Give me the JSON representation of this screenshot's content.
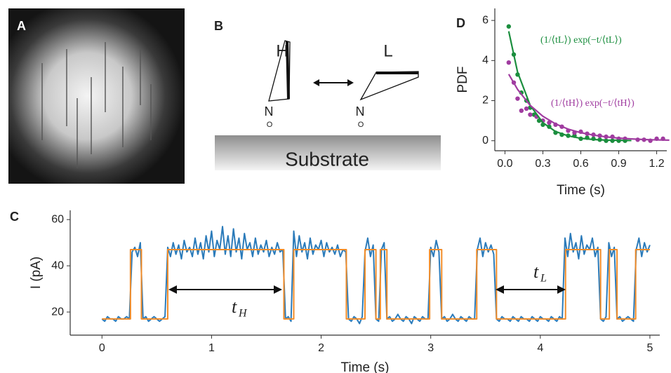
{
  "panels": {
    "A": {
      "label": "A"
    },
    "B": {
      "label": "B",
      "molecules": [
        {
          "state": "H",
          "n": "N",
          "o": "O"
        },
        {
          "state": "L",
          "n": "N",
          "o": "O"
        }
      ],
      "substrate": "Substrate"
    }
  },
  "chart_data": [
    {
      "type": "line",
      "panel": "C",
      "xlabel": "Time (s)",
      "ylabel": "I (pA)",
      "xlim": [
        -0.29,
        5.09
      ],
      "ylim": [
        10,
        64
      ],
      "xticks": [
        0,
        1,
        2,
        3,
        4,
        5
      ],
      "yticks": [
        20,
        40,
        60
      ],
      "annotations": [
        {
          "text": "t",
          "sub": "H"
        },
        {
          "text": "t",
          "sub": "L"
        }
      ],
      "series": [
        {
          "color": "#2b7bba",
          "x": [
            0,
            0.025,
            0.05,
            0.075,
            0.1,
            0.125,
            0.15,
            0.175,
            0.2,
            0.225,
            0.25,
            0.275,
            0.3,
            0.325,
            0.35,
            0.375,
            0.4,
            0.425,
            0.45,
            0.475,
            0.5,
            0.525,
            0.55,
            0.575,
            0.6,
            0.625,
            0.65,
            0.675,
            0.7,
            0.725,
            0.75,
            0.775,
            0.8,
            0.825,
            0.85,
            0.875,
            0.9,
            0.925,
            0.95,
            0.975,
            1,
            1.025,
            1.05,
            1.075,
            1.1,
            1.125,
            1.15,
            1.175,
            1.2,
            1.225,
            1.25,
            1.275,
            1.3,
            1.325,
            1.35,
            1.375,
            1.4,
            1.425,
            1.45,
            1.475,
            1.5,
            1.525,
            1.55,
            1.575,
            1.6,
            1.625,
            1.65,
            1.675,
            1.7,
            1.725,
            1.75,
            1.775,
            1.8,
            1.825,
            1.85,
            1.875,
            1.9,
            1.925,
            1.95,
            1.975,
            2,
            2.025,
            2.05,
            2.075,
            2.1,
            2.125,
            2.15,
            2.175,
            2.2,
            2.225,
            2.25,
            2.275,
            2.3,
            2.325,
            2.35,
            2.375,
            2.4,
            2.425,
            2.45,
            2.475,
            2.5,
            2.525,
            2.55,
            2.575,
            2.6,
            2.625,
            2.65,
            2.675,
            2.7,
            2.725,
            2.75,
            2.775,
            2.8,
            2.825,
            2.85,
            2.875,
            2.9,
            2.925,
            2.95,
            2.975,
            3,
            3.025,
            3.05,
            3.075,
            3.1,
            3.125,
            3.15,
            3.175,
            3.2,
            3.225,
            3.25,
            3.275,
            3.3,
            3.325,
            3.35,
            3.375,
            3.4,
            3.425,
            3.45,
            3.475,
            3.5,
            3.525,
            3.55,
            3.575,
            3.6,
            3.625,
            3.65,
            3.675,
            3.7,
            3.725,
            3.75,
            3.775,
            3.8,
            3.825,
            3.85,
            3.875,
            3.9,
            3.925,
            3.95,
            3.975,
            4,
            4.025,
            4.05,
            4.075,
            4.1,
            4.125,
            4.15,
            4.175,
            4.2,
            4.225,
            4.25,
            4.275,
            4.3,
            4.325,
            4.35,
            4.375,
            4.4,
            4.425,
            4.45,
            4.475,
            4.5,
            4.525,
            4.55,
            4.575,
            4.6,
            4.625,
            4.65,
            4.675,
            4.7,
            4.725,
            4.75,
            4.775,
            4.8,
            4.825,
            4.85,
            4.875,
            4.9,
            4.925,
            4.95,
            4.975,
            5
          ],
          "values": [
            17,
            16,
            18,
            17,
            17,
            16,
            18,
            17,
            17,
            18,
            17,
            46,
            48,
            44,
            50,
            17,
            18,
            16,
            17,
            18,
            17,
            16,
            17,
            18,
            48,
            44,
            50,
            45,
            49,
            43,
            51,
            46,
            48,
            44,
            52,
            45,
            50,
            43,
            53,
            46,
            55,
            44,
            51,
            47,
            57,
            45,
            53,
            44,
            56,
            46,
            52,
            43,
            54,
            47,
            50,
            44,
            52,
            45,
            49,
            46,
            51,
            44,
            48,
            45,
            50,
            46,
            47,
            17,
            18,
            16,
            55,
            44,
            53,
            46,
            50,
            43,
            52,
            45,
            49,
            47,
            51,
            44,
            50,
            46,
            48,
            45,
            49,
            44,
            47,
            46,
            17,
            16,
            18,
            17,
            15,
            18,
            46,
            52,
            44,
            49,
            17,
            16,
            47,
            50,
            17,
            18,
            16,
            17,
            19,
            17,
            16,
            18,
            17,
            15,
            18,
            17,
            16,
            18,
            17,
            17,
            48,
            44,
            51,
            46,
            17,
            18,
            16,
            17,
            19,
            17,
            16,
            18,
            17,
            16,
            18,
            17,
            17,
            47,
            52,
            44,
            50,
            46,
            49,
            45,
            17,
            16,
            18,
            17,
            17,
            16,
            18,
            17,
            16,
            18,
            17,
            17,
            16,
            18,
            17,
            16,
            18,
            17,
            17,
            16,
            18,
            17,
            16,
            18,
            17,
            52,
            44,
            54,
            46,
            50,
            43,
            53,
            45,
            49,
            47,
            52,
            44,
            48,
            17,
            16,
            18,
            50,
            44,
            48,
            17,
            18,
            16,
            17,
            18,
            17,
            16,
            47,
            52,
            44,
            50,
            46,
            49
          ]
        },
        {
          "color": "#f28c28",
          "x": [
            0,
            0.26,
            0.26,
            0.36,
            0.36,
            0.6,
            0.6,
            1.66,
            1.66,
            1.75,
            1.75,
            2.23,
            2.23,
            2.4,
            2.4,
            2.5,
            2.5,
            2.54,
            2.54,
            2.6,
            2.6,
            2.99,
            2.99,
            3.1,
            3.1,
            3.42,
            3.42,
            3.6,
            3.6,
            4.23,
            4.23,
            4.55,
            4.55,
            4.63,
            4.63,
            4.7,
            4.7,
            4.87,
            4.87,
            5.0
          ],
          "values": [
            17,
            17,
            47,
            47,
            17,
            17,
            47,
            47,
            17,
            17,
            47,
            47,
            17,
            17,
            47,
            47,
            17,
            17,
            47,
            47,
            17,
            17,
            47,
            47,
            17,
            17,
            47,
            47,
            17,
            17,
            47,
            47,
            17,
            17,
            47,
            47,
            17,
            17,
            47,
            47
          ]
        }
      ]
    },
    {
      "type": "scatter",
      "panel": "D",
      "xlabel": "Time (s)",
      "ylabel": "PDF",
      "xlim": [
        -0.08,
        1.28
      ],
      "ylim": [
        -0.5,
        6.6
      ],
      "xticks": [
        {
          "value": 0,
          "label": "0.0"
        },
        0.3,
        0.6,
        0.9,
        1.2
      ],
      "yticks": [
        0,
        2,
        4,
        6
      ],
      "annotations": [
        {
          "text": "(1/⟨tL⟩) exp(−t/⟨tL⟩)",
          "color": "#1b8e3e"
        },
        {
          "text": "(1/⟨tH⟩) exp(−t/⟨tH⟩)",
          "color": "#a03ca0"
        }
      ],
      "series": [
        {
          "color": "#1b8e3e",
          "style": "points",
          "x": [
            0.03,
            0.07,
            0.1,
            0.13,
            0.17,
            0.2,
            0.23,
            0.27,
            0.3,
            0.35,
            0.4,
            0.45,
            0.5,
            0.55,
            0.6,
            0.65,
            0.7,
            0.75,
            0.8,
            0.85,
            0.9,
            0.95
          ],
          "values": [
            5.7,
            4.3,
            3.3,
            2.4,
            2.0,
            1.65,
            1.3,
            1.0,
            0.8,
            0.7,
            0.4,
            0.3,
            0.25,
            0.25,
            0.1,
            0.15,
            0.1,
            0.05,
            0,
            0,
            0,
            0
          ]
        },
        {
          "color": "#a03ca0",
          "style": "points",
          "x": [
            0.03,
            0.07,
            0.1,
            0.13,
            0.17,
            0.2,
            0.25,
            0.3,
            0.35,
            0.4,
            0.45,
            0.5,
            0.55,
            0.6,
            0.65,
            0.7,
            0.75,
            0.8,
            0.85,
            0.9,
            0.95,
            1.05,
            1.1,
            1.15,
            1.2,
            1.25
          ],
          "values": [
            3.9,
            2.9,
            2.1,
            1.5,
            1.6,
            1.3,
            1.2,
            1.0,
            0.9,
            0.8,
            0.7,
            0.5,
            0.4,
            0.45,
            0.35,
            0.3,
            0.25,
            0.2,
            0.2,
            0.1,
            0.1,
            0.05,
            0.05,
            0,
            0.1,
            0.1
          ]
        },
        {
          "color": "#1b8e3e",
          "style": "line",
          "x": [
            0.03,
            0.1,
            0.2,
            0.3,
            0.4,
            0.5,
            0.6,
            0.7,
            0.8,
            0.9,
            1.0
          ],
          "values": [
            5.46,
            3.42,
            1.76,
            0.9,
            0.46,
            0.24,
            0.12,
            0.06,
            0.03,
            0.02,
            0.01
          ]
        },
        {
          "color": "#a03ca0",
          "style": "line",
          "x": [
            0.03,
            0.1,
            0.2,
            0.3,
            0.4,
            0.5,
            0.6,
            0.7,
            0.8,
            0.9,
            1.0,
            1.1,
            1.2,
            1.3
          ],
          "values": [
            3.32,
            2.56,
            1.76,
            1.22,
            0.84,
            0.58,
            0.4,
            0.28,
            0.19,
            0.13,
            0.09,
            0.06,
            0.04,
            0.03
          ]
        }
      ]
    }
  ]
}
